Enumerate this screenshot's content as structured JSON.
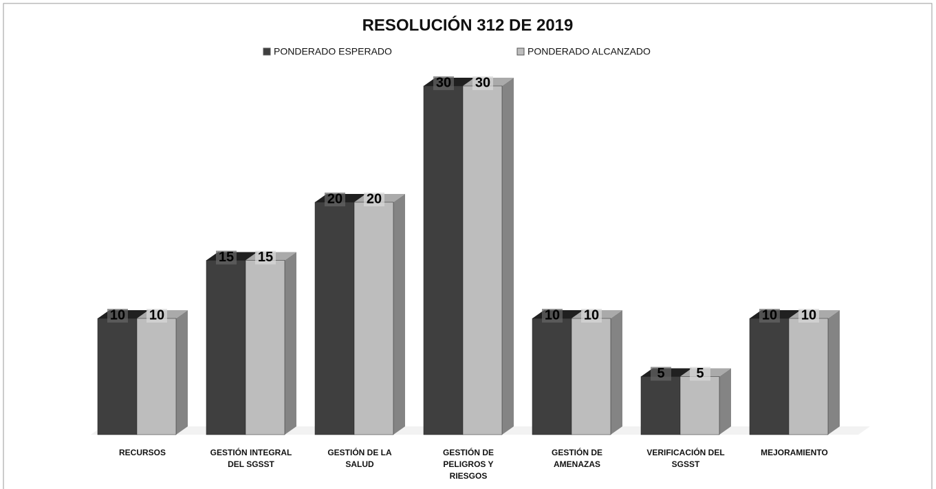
{
  "chart_data": {
    "type": "bar3d",
    "title": "RESOLUCIÓN 312 DE 2019",
    "categories": [
      "RECURSOS",
      "GESTIÓN INTEGRAL DEL SGSST",
      "GESTIÓN DE LA SALUD",
      "GESTIÓN DE PELIGROS Y RIESGOS",
      "GESTIÓN DE AMENAZAS",
      "VERIFICACIÓN DEL SGSST",
      "MEJORAMIENTO"
    ],
    "series": [
      {
        "name": "PONDERADO ESPERADO",
        "color": "#3f3f3f",
        "values": [
          10,
          15,
          20,
          30,
          10,
          5,
          10
        ]
      },
      {
        "name": "PONDERADO ALCANZADO",
        "color": "#bdbdbd",
        "values": [
          10,
          15,
          20,
          30,
          10,
          5,
          10
        ]
      }
    ]
  }
}
